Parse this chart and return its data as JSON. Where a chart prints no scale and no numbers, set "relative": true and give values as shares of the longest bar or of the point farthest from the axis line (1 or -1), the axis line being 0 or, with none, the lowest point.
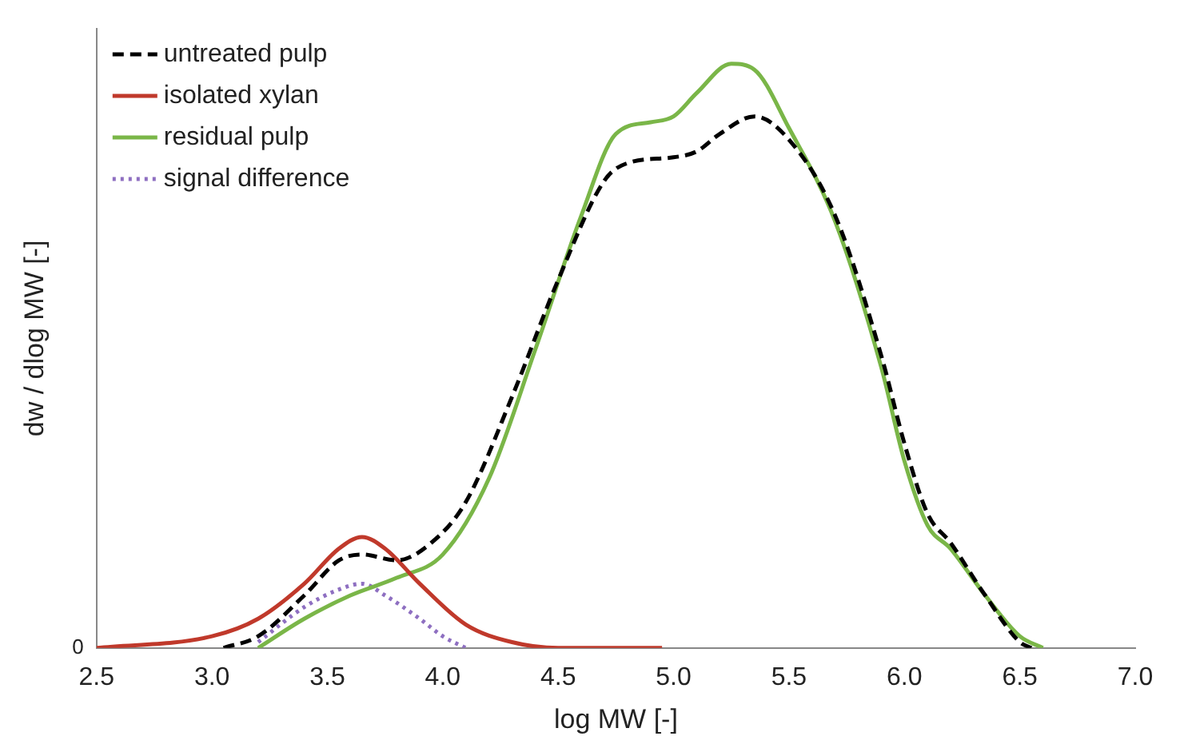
{
  "chart_data": {
    "type": "line",
    "relative": true,
    "xlabel": "log MW [-]",
    "ylabel": "dw / dlog MW [-]",
    "xlim": [
      2.5,
      7.0
    ],
    "xticks": [
      {
        "value": 2.5,
        "label": "2.5"
      },
      {
        "value": 3,
        "label": "3.0"
      },
      {
        "value": 3.5,
        "label": "3.5"
      },
      {
        "value": 4,
        "label": "4.0"
      },
      {
        "value": 4.5,
        "label": "4.5"
      },
      {
        "value": 5,
        "label": "5.0"
      },
      {
        "value": 5.5,
        "label": "5.5"
      },
      {
        "value": 6,
        "label": "6.0"
      },
      {
        "value": 6.5,
        "label": "6.5"
      },
      {
        "value": 7,
        "label": "7.0"
      }
    ],
    "legend": "top left",
    "grid": false,
    "marker": "none",
    "annotations": [
      "0"
    ],
    "series": [
      {
        "name": "untreated pulp",
        "color": "#000000",
        "line_style": "dashed",
        "x": [
          3.05,
          3.2,
          3.4,
          3.55,
          3.65,
          3.8,
          3.95,
          4.1,
          4.3,
          4.5,
          4.7,
          4.8,
          5.0,
          5.1,
          5.2,
          5.35,
          5.5,
          5.7,
          5.9,
          6.0,
          6.1,
          6.2,
          6.35,
          6.5,
          6.55
        ],
        "values": [
          0,
          0.02,
          0.09,
          0.15,
          0.16,
          0.15,
          0.18,
          0.25,
          0.43,
          0.63,
          0.8,
          0.83,
          0.84,
          0.85,
          0.88,
          0.91,
          0.87,
          0.74,
          0.5,
          0.35,
          0.23,
          0.18,
          0.09,
          0.01,
          0
        ]
      },
      {
        "name": "isolated xylan",
        "color": "#c0392b",
        "line_style": "solid",
        "x": [
          2.5,
          3.0,
          3.2,
          3.4,
          3.55,
          3.65,
          3.75,
          3.9,
          4.1,
          4.3,
          4.5,
          4.95
        ],
        "values": [
          0,
          0.02,
          0.05,
          0.11,
          0.17,
          0.19,
          0.17,
          0.11,
          0.04,
          0.01,
          0,
          0
        ]
      },
      {
        "name": "residual pulp",
        "color": "#7ab648",
        "line_style": "solid",
        "x": [
          3.2,
          3.4,
          3.6,
          3.8,
          4.0,
          4.2,
          4.4,
          4.6,
          4.75,
          4.9,
          5.0,
          5.1,
          5.25,
          5.35,
          5.5,
          5.7,
          5.9,
          6.0,
          6.1,
          6.2,
          6.35,
          6.5,
          6.6
        ],
        "values": [
          0,
          0.05,
          0.09,
          0.12,
          0.16,
          0.29,
          0.51,
          0.74,
          0.88,
          0.9,
          0.91,
          0.95,
          1,
          0.99,
          0.89,
          0.73,
          0.48,
          0.32,
          0.21,
          0.17,
          0.09,
          0.02,
          0
        ]
      },
      {
        "name": "signal difference",
        "color": "#8e6fc1",
        "line_style": "dotted",
        "x": [
          3.2,
          3.4,
          3.55,
          3.65,
          3.75,
          3.9,
          4.0,
          4.1
        ],
        "values": [
          0.01,
          0.07,
          0.1,
          0.11,
          0.09,
          0.05,
          0.02,
          0
        ]
      }
    ]
  }
}
